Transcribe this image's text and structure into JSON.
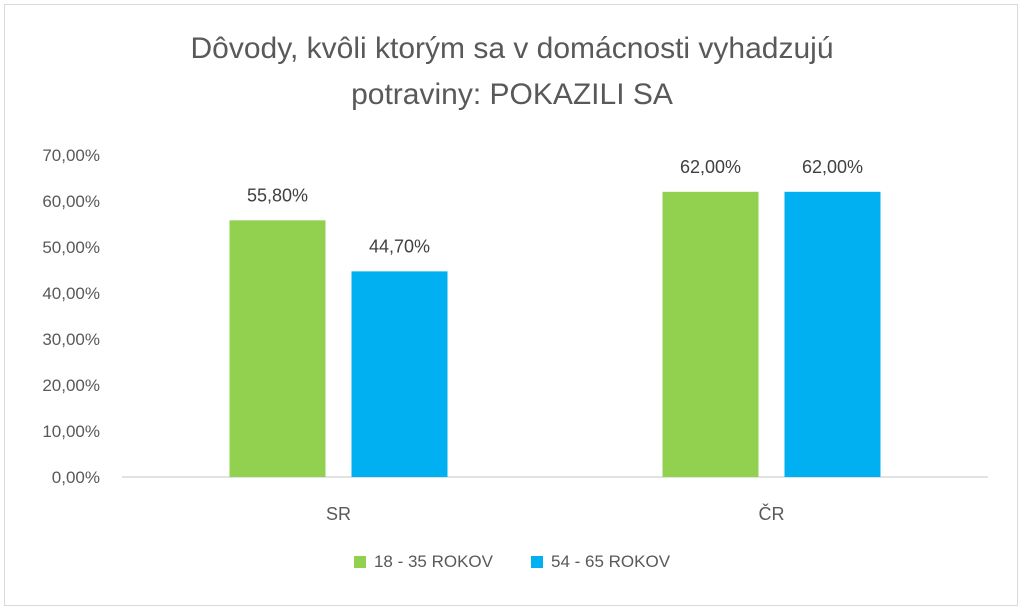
{
  "chart_data": {
    "type": "bar",
    "title_line1": "Dôvody, kvôli ktorým sa v domácnosti vyhadzujú",
    "title_line2": "potraviny: POKAZILI SA",
    "categories": [
      "SR",
      "ČR"
    ],
    "series": [
      {
        "name": "18 - 35 ROKOV",
        "color": "#92d050",
        "values": [
          55.8,
          62.0
        ],
        "labels": [
          "55,80%",
          "62,00%"
        ]
      },
      {
        "name": "54 - 65 ROKOV",
        "color": "#00b0f0",
        "values": [
          44.7,
          62.0
        ],
        "labels": [
          "44,70%",
          "62,00%"
        ]
      }
    ],
    "y_ticks": [
      "0,00%",
      "10,00%",
      "20,00%",
      "30,00%",
      "40,00%",
      "50,00%",
      "60,00%",
      "70,00%"
    ],
    "ylim": [
      0,
      70
    ],
    "grid": false,
    "legend": "bottom"
  }
}
